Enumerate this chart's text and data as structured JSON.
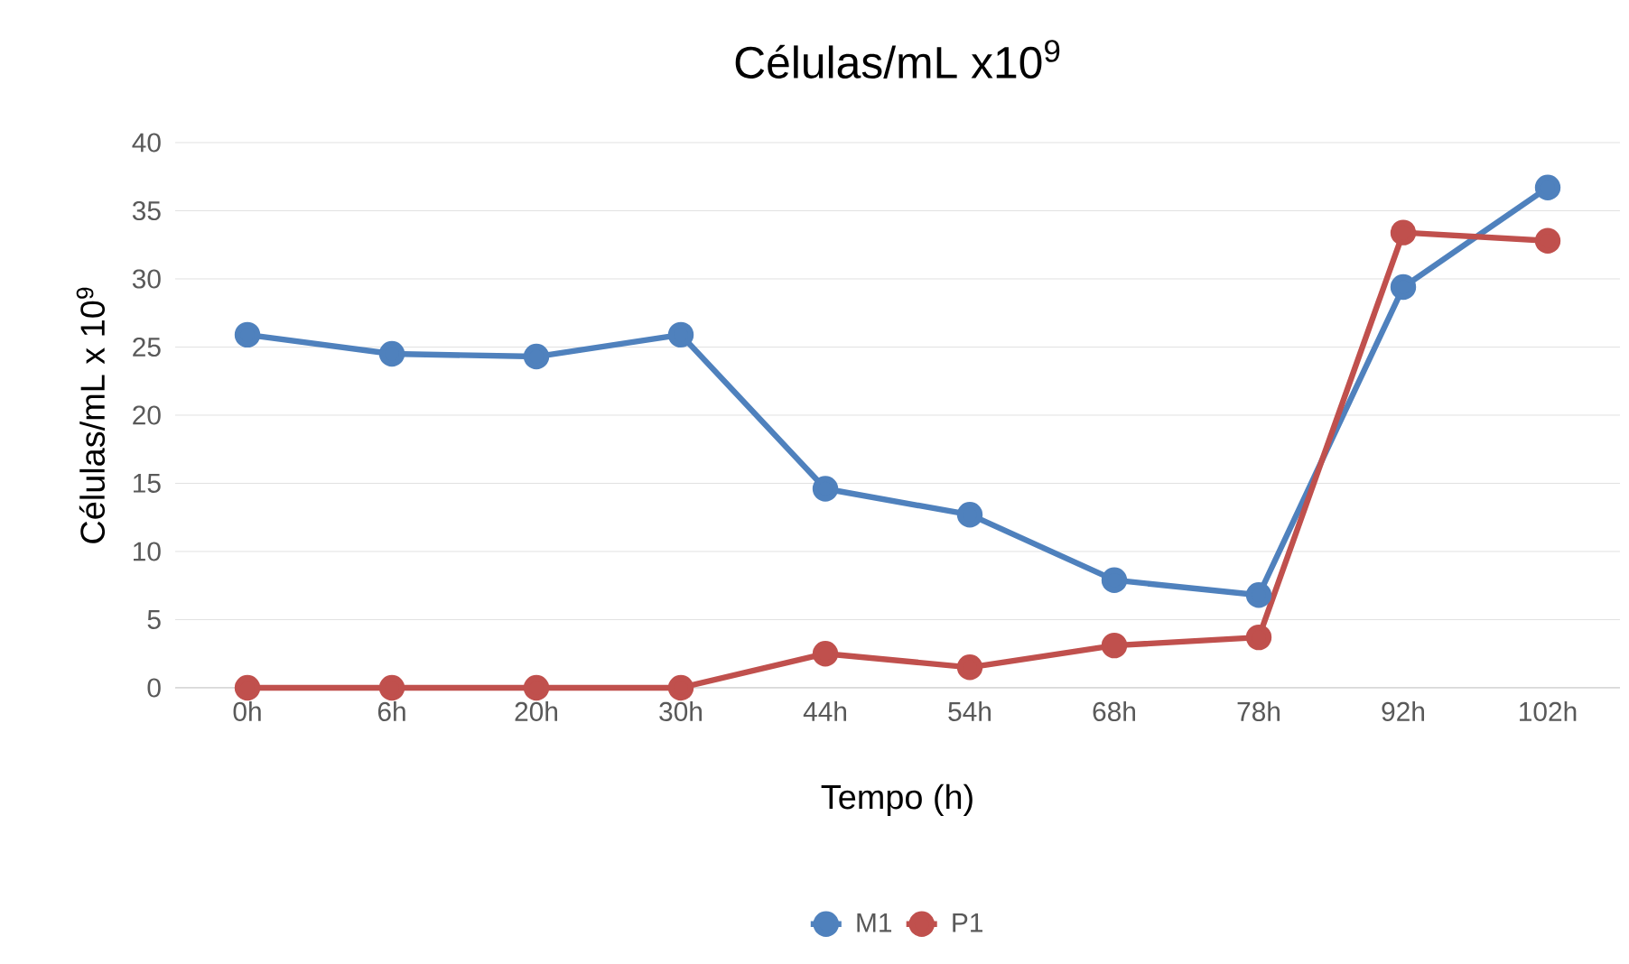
{
  "chart_data": {
    "type": "line",
    "title": "Células/mL x10$^{9}$",
    "xlabel": "Tempo (h)",
    "ylabel": "Células/mL x 10$^{9}$",
    "categories": [
      "0h",
      "6h",
      "20h",
      "30h",
      "44h",
      "54h",
      "68h",
      "78h",
      "92h",
      "102h"
    ],
    "series": [
      {
        "name": "M1",
        "color": "#4f81bd",
        "values": [
          25.9,
          24.5,
          24.3,
          25.9,
          14.6,
          12.7,
          7.9,
          6.8,
          29.4,
          36.7
        ]
      },
      {
        "name": "P1",
        "color": "#c0504d",
        "values": [
          0,
          0,
          0,
          0,
          2.5,
          1.5,
          3.1,
          3.7,
          33.4,
          32.8
        ]
      }
    ],
    "ylim": [
      0,
      40
    ],
    "yticks": [
      0,
      5,
      10,
      15,
      20,
      25,
      30,
      35,
      40
    ],
    "grid": "y",
    "legend": "bottom",
    "marker": "circle",
    "line_style": "solid"
  }
}
